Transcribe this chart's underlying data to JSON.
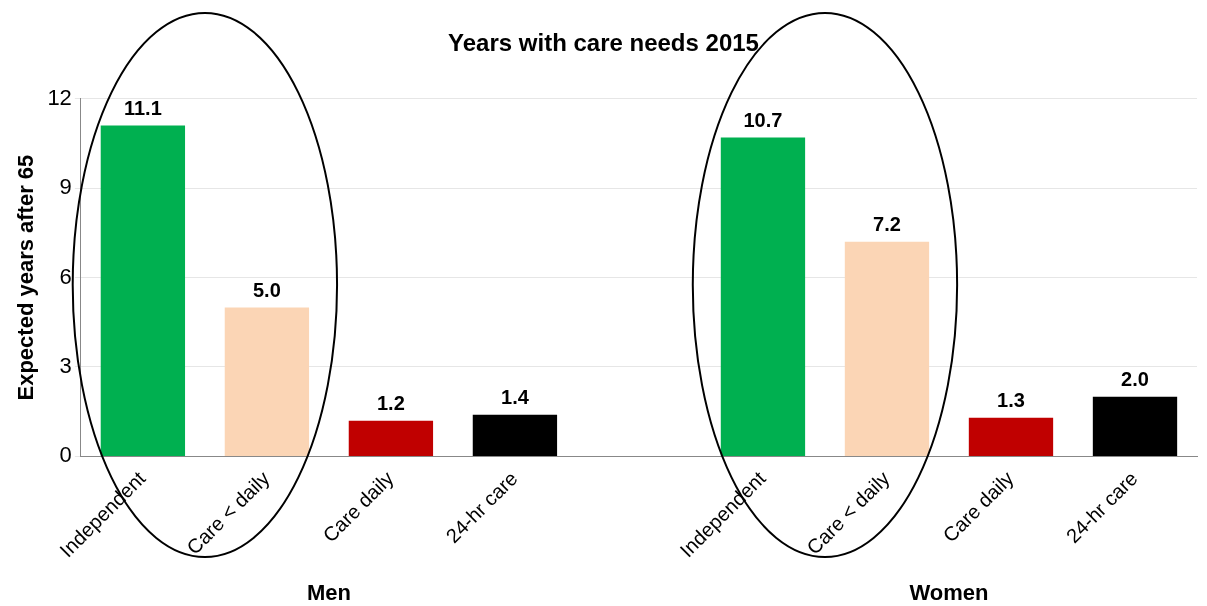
{
  "chart_data": {
    "type": "bar",
    "title": "Years with care needs 2015",
    "ylabel": "Expected years after 65",
    "categories": [
      "Independent",
      "Care < daily",
      "Care daily",
      "24-hr care",
      null,
      "Independent",
      "Care < daily",
      "Care daily",
      "24-hr care"
    ],
    "values": [
      11.1,
      5.0,
      1.2,
      1.4,
      null,
      10.7,
      7.2,
      1.3,
      2.0
    ],
    "colors": [
      "#00b050",
      "#fbd5b5",
      "#c00000",
      "#000000",
      "#000000",
      "#00b050",
      "#fbd5b5",
      "#c00000",
      "#000000"
    ],
    "value_labels": [
      "11.1",
      "5.0",
      "1.2",
      "1.4",
      null,
      "10.7",
      "7.2",
      "1.3",
      "2.0"
    ],
    "ylim": [
      0,
      12
    ],
    "yticks": [
      0,
      3,
      6,
      9,
      12
    ],
    "grid": "y",
    "legend": false,
    "annotations": [
      "Men",
      "Women"
    ]
  }
}
